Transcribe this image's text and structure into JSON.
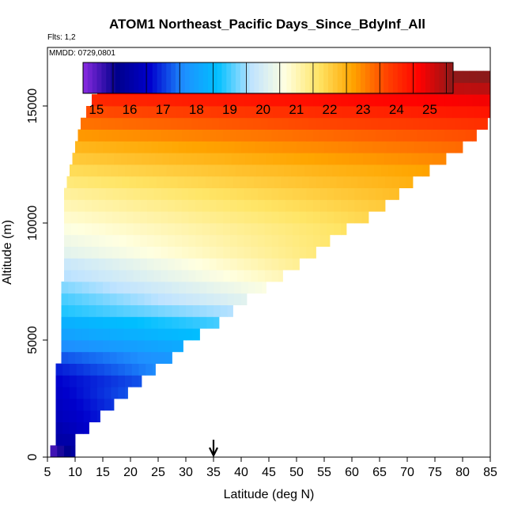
{
  "chart_data": {
    "type": "heatmap",
    "title": "ATOM1 Northeast_Pacific Days_Since_BdyInf_All",
    "annotations": {
      "flights": "Flts: 1,2",
      "dates": "MMDD: 0729,0801"
    },
    "xlabel": "Latitude (deg N)",
    "ylabel": "Altitude (m)",
    "xlim": [
      5,
      85
    ],
    "ylim": [
      0,
      17500
    ],
    "xticks": [
      5,
      10,
      15,
      20,
      25,
      30,
      35,
      40,
      45,
      50,
      55,
      60,
      65,
      70,
      75,
      80,
      85
    ],
    "yticks": [
      0,
      5000,
      10000,
      15000
    ],
    "grid": false,
    "colorbar": {
      "placement": "top-inset",
      "min": 14.6,
      "max": 25.7,
      "ticks": [
        15,
        16,
        17,
        18,
        19,
        20,
        21,
        22,
        23,
        24,
        25
      ]
    },
    "colors": {
      "scale": [
        "#8a2be2",
        "#00008b",
        "#0000cd",
        "#1e90ff",
        "#00bfff",
        "#bfe3ff",
        "#ffffe0",
        "#ffe566",
        "#ffa500",
        "#ff4500",
        "#ff0000",
        "#8b1a1a"
      ]
    },
    "marker_latitude": 35,
    "layers": [
      {
        "z": 0,
        "lat": [
          5.5,
          10
        ],
        "values": [
          15.0,
          16.0
        ]
      },
      {
        "z": 500,
        "lat": [
          6.5,
          10
        ],
        "values": [
          16.0,
          16.1
        ]
      },
      {
        "z": 1000,
        "lat": [
          6.5,
          12.5
        ],
        "values": [
          16.1,
          16.6
        ]
      },
      {
        "z": 1500,
        "lat": [
          6.5,
          14.5
        ],
        "values": [
          16.3,
          16.8
        ]
      },
      {
        "z": 2000,
        "lat": [
          6.5,
          17.0
        ],
        "values": [
          16.4,
          17.0
        ]
      },
      {
        "z": 2500,
        "lat": [
          6.5,
          19.5
        ],
        "values": [
          16.5,
          17.2
        ]
      },
      {
        "z": 3000,
        "lat": [
          6.5,
          22.0
        ],
        "values": [
          16.6,
          17.2
        ]
      },
      {
        "z": 3500,
        "lat": [
          6.5,
          24.5
        ],
        "values": [
          16.8,
          17.6
        ]
      },
      {
        "z": 4000,
        "lat": [
          7.5,
          27.5
        ],
        "values": [
          17.2,
          17.8
        ]
      },
      {
        "z": 4500,
        "lat": [
          7.5,
          29.5
        ],
        "values": [
          17.6,
          18.2
        ]
      },
      {
        "z": 5000,
        "lat": [
          7.5,
          32.5
        ],
        "values": [
          18.0,
          18.6
        ]
      },
      {
        "z": 5500,
        "lat": [
          7.5,
          36.0
        ],
        "values": [
          18.3,
          19.0
        ]
      },
      {
        "z": 6000,
        "lat": [
          7.5,
          38.5
        ],
        "values": [
          18.8,
          19.6
        ]
      },
      {
        "z": 6500,
        "lat": [
          7.5,
          41.0
        ],
        "values": [
          19.0,
          20.2
        ]
      },
      {
        "z": 7000,
        "lat": [
          7.5,
          44.5
        ],
        "values": [
          19.3,
          20.6
        ]
      },
      {
        "z": 7500,
        "lat": [
          8.0,
          47.5
        ],
        "values": [
          19.6,
          21.0
        ]
      },
      {
        "z": 8000,
        "lat": [
          8.0,
          50.5
        ],
        "values": [
          19.8,
          21.3
        ]
      },
      {
        "z": 8500,
        "lat": [
          8.0,
          53.5
        ],
        "values": [
          20.2,
          21.5
        ]
      },
      {
        "z": 9000,
        "lat": [
          8.0,
          56.0
        ],
        "values": [
          20.4,
          21.6
        ]
      },
      {
        "z": 9500,
        "lat": [
          8.0,
          59.0
        ],
        "values": [
          20.6,
          21.7
        ]
      },
      {
        "z": 10000,
        "lat": [
          8.0,
          63.0
        ],
        "values": [
          20.8,
          21.9
        ]
      },
      {
        "z": 10500,
        "lat": [
          8.0,
          66.0
        ],
        "values": [
          21.0,
          22.1
        ]
      },
      {
        "z": 11000,
        "lat": [
          8.0,
          68.5
        ],
        "values": [
          21.2,
          22.3
        ]
      },
      {
        "z": 11500,
        "lat": [
          8.5,
          71.0
        ],
        "values": [
          21.5,
          22.5
        ]
      },
      {
        "z": 12000,
        "lat": [
          9.0,
          74.0
        ],
        "values": [
          21.8,
          22.7
        ]
      },
      {
        "z": 12500,
        "lat": [
          9.5,
          77.0
        ],
        "values": [
          22.1,
          23.0
        ]
      },
      {
        "z": 13000,
        "lat": [
          10.0,
          80.0
        ],
        "values": [
          22.4,
          23.3
        ]
      },
      {
        "z": 13500,
        "lat": [
          10.5,
          82.5
        ],
        "values": [
          22.8,
          23.6
        ]
      },
      {
        "z": 14000,
        "lat": [
          11.0,
          84.5
        ],
        "values": [
          23.2,
          24.0
        ]
      },
      {
        "z": 14500,
        "lat": [
          12.0,
          85.0
        ],
        "values": [
          23.6,
          24.4
        ]
      },
      {
        "z": 15000,
        "lat": [
          13.0,
          85.0
        ],
        "values": [
          24.1,
          24.8
        ]
      },
      {
        "z": 15500,
        "lat": [
          14.0,
          85.0
        ],
        "values": [
          24.6,
          25.3
        ]
      },
      {
        "z": 16000,
        "lat": [
          15.0,
          85.0
        ],
        "values": [
          25.0,
          25.7
        ]
      }
    ]
  }
}
